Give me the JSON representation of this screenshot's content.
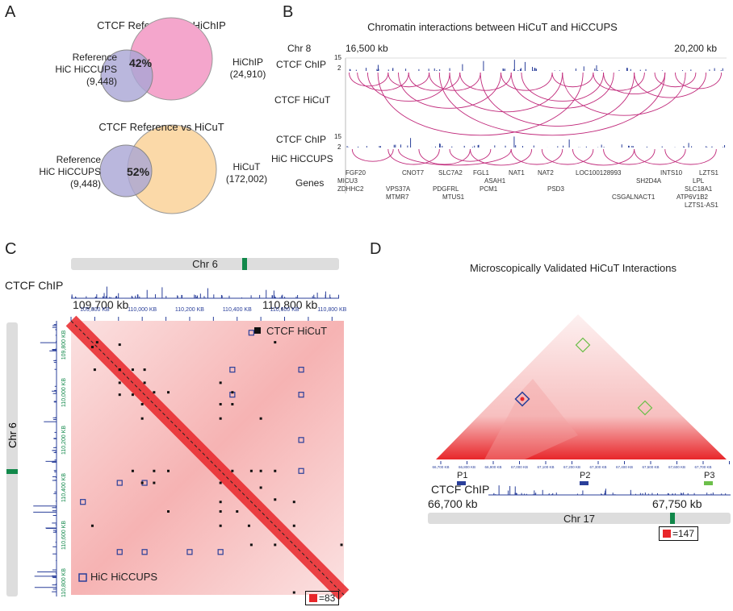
{
  "panels": {
    "a": "A",
    "b": "B",
    "c": "C",
    "d": "D"
  },
  "venn1": {
    "title": "CTCF Reference vs HiChIP",
    "left": [
      "Reference",
      "HiC HiCCUPS",
      "(9,448)"
    ],
    "right": [
      "HiChIP",
      "(24,910)"
    ],
    "overlap": "42%",
    "left_color": "#b9b6dc",
    "right_color": "#f4a6cc"
  },
  "venn2": {
    "title": "CTCF Reference vs HiCuT",
    "left": [
      "Reference",
      "HiC HiCCUPS",
      "(9,448)"
    ],
    "right": [
      "HiCuT",
      "(172,002)"
    ],
    "overlap": "52%",
    "left_color": "#b9b6dc",
    "right_color": "#fbd9a8"
  },
  "b": {
    "title": "Chromatin interactions between HiCuT and HiCCUPS",
    "chr": "Chr 8",
    "start": "16,500 kb",
    "end": "20,200 kb",
    "track1": "CTCF ChIP",
    "track2": "CTCF HiCuT",
    "track3": "CTCF ChIP",
    "track4": "HiC HiCCUPS",
    "genes_label": "Genes",
    "scale_top": "15",
    "scale_bot": "2",
    "range_kb": [
      16500,
      20200
    ],
    "hicut_arcs": [
      [
        16520,
        16900
      ],
      [
        16600,
        17100
      ],
      [
        16700,
        17500
      ],
      [
        16900,
        17300
      ],
      [
        17000,
        18000
      ],
      [
        17100,
        17600
      ],
      [
        17300,
        17800
      ],
      [
        17500,
        18600
      ],
      [
        17600,
        18100
      ],
      [
        17800,
        19300
      ],
      [
        18000,
        18500
      ],
      [
        18200,
        19000
      ],
      [
        18500,
        18900
      ],
      [
        18600,
        19800
      ],
      [
        18900,
        19400
      ],
      [
        19000,
        19600
      ],
      [
        19300,
        20000
      ],
      [
        19500,
        19900
      ],
      [
        19700,
        20150
      ],
      [
        16800,
        18800
      ],
      [
        17400,
        19600
      ],
      [
        18100,
        19100
      ]
    ],
    "hiccups_arcs": [
      [
        16550,
        16950
      ],
      [
        16900,
        17400
      ],
      [
        17200,
        17700
      ],
      [
        17500,
        17900
      ],
      [
        17700,
        18300
      ],
      [
        18100,
        18600
      ],
      [
        18400,
        18900
      ],
      [
        18700,
        19300
      ],
      [
        19000,
        19500
      ],
      [
        19300,
        19800
      ],
      [
        19600,
        20100
      ],
      [
        17000,
        18100
      ]
    ],
    "genes": [
      "FGF20",
      "MICU3",
      "ZDHHC2",
      "CNOT7",
      "VPS37A",
      "MTMR7",
      "SLC7A2",
      "PDGFRL",
      "MTUS1",
      "FGL1",
      "ASAH1",
      "PCM1",
      "NAT1",
      "NAT2",
      "PSD3",
      "LOC100128993",
      "SH2D4A",
      "CSGALNACT1",
      "INTS10",
      "LPL",
      "LZTS1",
      "SLC18A1",
      "ATP6V1B2",
      "LZTS1-AS1"
    ]
  },
  "c": {
    "chr": "Chr 6",
    "chip": "CTCF ChIP",
    "start": "109,700 kb",
    "end": "110,800 kb",
    "ticks": [
      "109,800 KB",
      "110,000 KB",
      "110,200 KB",
      "110,400 KB",
      "110,600 KB",
      "110,800 KB"
    ],
    "legend_hicut": "CTCF HiCuT",
    "legend_hiccups": "HiC HiCCUPS",
    "scale": "=83",
    "range_kb": [
      109700,
      110850
    ],
    "hicut_dots": [
      [
        109790,
        109810
      ],
      [
        109800,
        109905
      ],
      [
        109905,
        109905
      ],
      [
        109905,
        109960
      ],
      [
        109905,
        110010
      ],
      [
        109960,
        110010
      ],
      [
        110000,
        110050
      ],
      [
        110000,
        110110
      ],
      [
        109960,
        110330
      ],
      [
        110050,
        110330
      ],
      [
        110110,
        110330
      ],
      [
        110000,
        110380
      ],
      [
        110050,
        110380
      ],
      [
        110330,
        110380
      ],
      [
        110330,
        110460
      ],
      [
        110110,
        110500
      ],
      [
        110330,
        110500
      ],
      [
        110400,
        110500
      ],
      [
        110330,
        110560
      ],
      [
        110450,
        110560
      ],
      [
        110460,
        110640
      ],
      [
        110560,
        110640
      ],
      [
        110640,
        110840
      ],
      [
        109790,
        110560
      ]
    ],
    "hiccups_dots": [
      [
        109905,
        110380
      ],
      [
        110010,
        110380
      ],
      [
        109750,
        110460
      ],
      [
        110010,
        110670
      ],
      [
        109905,
        110670
      ],
      [
        110200,
        110670
      ],
      [
        110330,
        110670
      ]
    ]
  },
  "d": {
    "title": "Microscopically Validated HiCuT Interactions",
    "chip": "CTCF ChIP",
    "chr": "Chr 17",
    "start": "66,700 kb",
    "end": "67,750 kb",
    "scale": "=147",
    "ticks": [
      "66,700 KB",
      "66,800 KB",
      "66,900 KB",
      "67,000 KB",
      "67,100 KB",
      "67,200 KB",
      "67,300 KB",
      "67,400 KB",
      "67,500 KB",
      "67,600 KB",
      "67,700 KB"
    ],
    "probes": [
      {
        "label": "P1",
        "color": "#2a3f9a"
      },
      {
        "label": "P2",
        "color": "#2a3f9a"
      },
      {
        "label": "P3",
        "color": "#6cbf4a"
      }
    ]
  },
  "colors": {
    "heat": "#e8262a",
    "chip": "#2a3f9a",
    "arc": "#c0287a",
    "green": "#11884a"
  }
}
